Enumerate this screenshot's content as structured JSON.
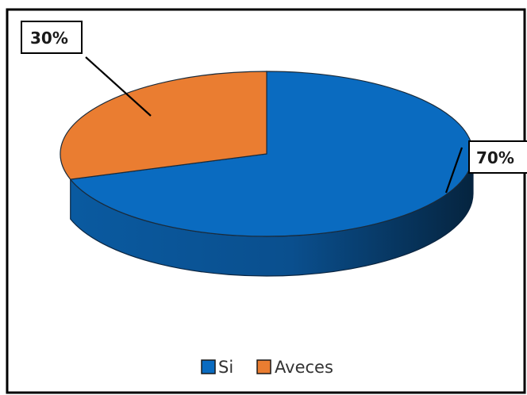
{
  "chart_data": {
    "type": "pie",
    "title": "",
    "categories": [
      "Si",
      "Aveces"
    ],
    "values": [
      70,
      30
    ],
    "data_labels": [
      "70%",
      "30%"
    ],
    "colors": [
      "#0a6bc0",
      "#ea7d31"
    ],
    "legend": {
      "position": "bottom",
      "entries": [
        "Si",
        "Aveces"
      ]
    },
    "style": "3d"
  }
}
